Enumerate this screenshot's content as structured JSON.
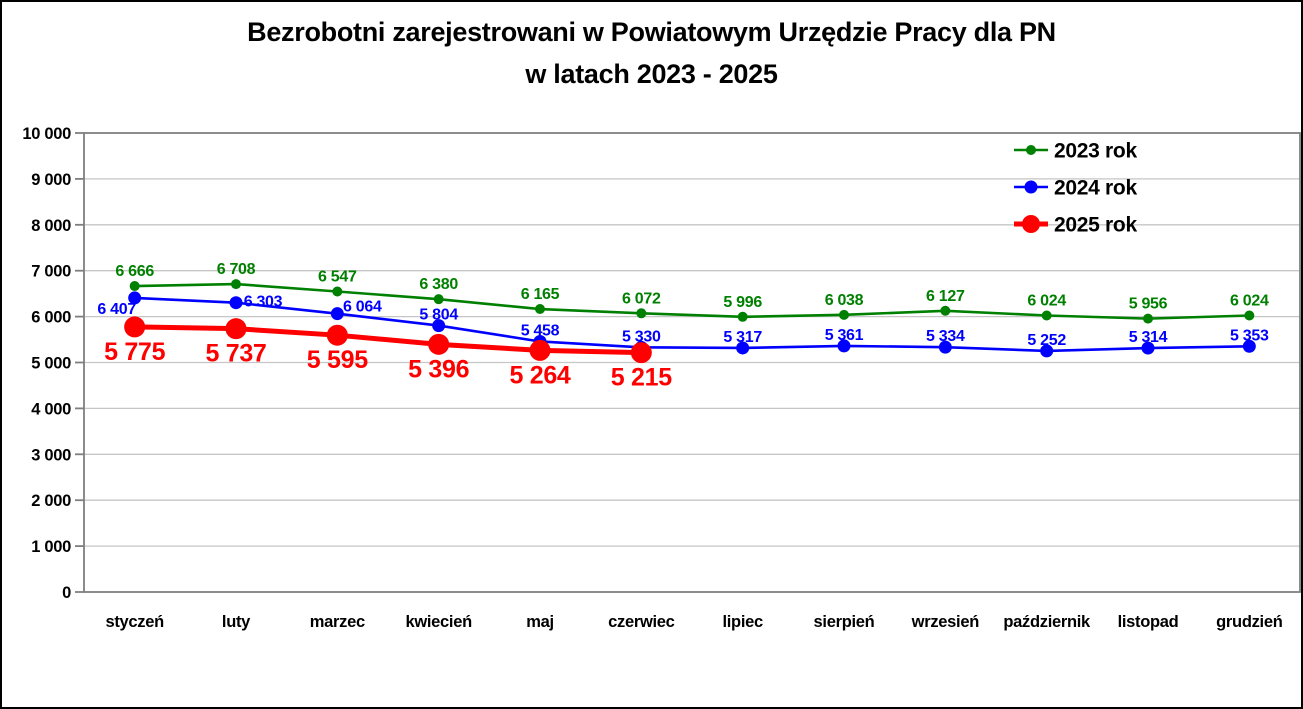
{
  "title": {
    "line1": "Bezrobotni zarejestrowani w Powiatowym Urzędzie Pracy dla PN",
    "line2": "w latach 2023 - 2025"
  },
  "colors": {
    "series_2023": "#008000",
    "series_2024": "#0000ff",
    "series_2025": "#ff0000",
    "gridline": "#c6c6c6",
    "plot_border": "#7f7f7f",
    "text": "#000000",
    "background": "#ffffff"
  },
  "chart_data": {
    "type": "line",
    "title": "Bezrobotni zarejestrowani w Powiatowym Urzędzie Pracy dla PN w latach 2023 - 2025",
    "categories": [
      "styczeń",
      "luty",
      "marzec",
      "kwiecień",
      "maj",
      "czerwiec",
      "lipiec",
      "sierpień",
      "wrzesień",
      "październik",
      "listopad",
      "grudzień"
    ],
    "y_axis": {
      "min": 0,
      "max": 10000,
      "step": 1000,
      "tick_labels": [
        "0",
        "1 000",
        "2 000",
        "3 000",
        "4 000",
        "5 000",
        "6 000",
        "7 000",
        "8 000",
        "9 000",
        "10 000"
      ]
    },
    "grid": true,
    "legend": {
      "position": "top-right",
      "entries": [
        "2023 rok",
        "2024 rok",
        "2025 rok"
      ]
    },
    "series": [
      {
        "name": "2023 rok",
        "color": "#008000",
        "line_width": 2.6,
        "marker_radius": 5,
        "values": [
          6666,
          6708,
          6547,
          6380,
          6165,
          6072,
          5996,
          6038,
          6127,
          6024,
          5956,
          6024
        ],
        "labels": [
          "6 666",
          "6 708",
          "6 547",
          "6 380",
          "6 165",
          "6 072",
          "5 996",
          "6 038",
          "6 127",
          "6 024",
          "5 956",
          "6 024"
        ],
        "label_font": 16,
        "label_dx": 0,
        "label_dy": -10,
        "label_overrides": {}
      },
      {
        "name": "2024 rok",
        "color": "#0000ff",
        "line_width": 2.6,
        "marker_radius": 6.5,
        "values": [
          6407,
          6303,
          6064,
          5804,
          5458,
          5330,
          5317,
          5361,
          5334,
          5252,
          5314,
          5353
        ],
        "labels": [
          "6 407",
          "6 303",
          "6 064",
          "5 804",
          "5 458",
          "5 330",
          "5 317",
          "5 361",
          "5 334",
          "5 252",
          "5 314",
          "5 353"
        ],
        "label_font": 16,
        "label_dx": 0,
        "label_dy": -6,
        "label_overrides": {
          "0": {
            "dx": -18,
            "dy": 16
          },
          "1": {
            "dx": 27,
            "dy": 4
          },
          "2": {
            "dx": 25,
            "dy": -2
          }
        }
      },
      {
        "name": "2025 rok",
        "color": "#ff0000",
        "line_width": 5,
        "marker_radius": 10.5,
        "values": [
          5775,
          5737,
          5595,
          5396,
          5264,
          5215
        ],
        "labels": [
          "5 775",
          "5 737",
          "5 595",
          "5 396",
          "5 264",
          "5 215"
        ],
        "label_font": 25,
        "label_dx": 0,
        "label_dy": 33,
        "label_overrides": {}
      }
    ]
  }
}
